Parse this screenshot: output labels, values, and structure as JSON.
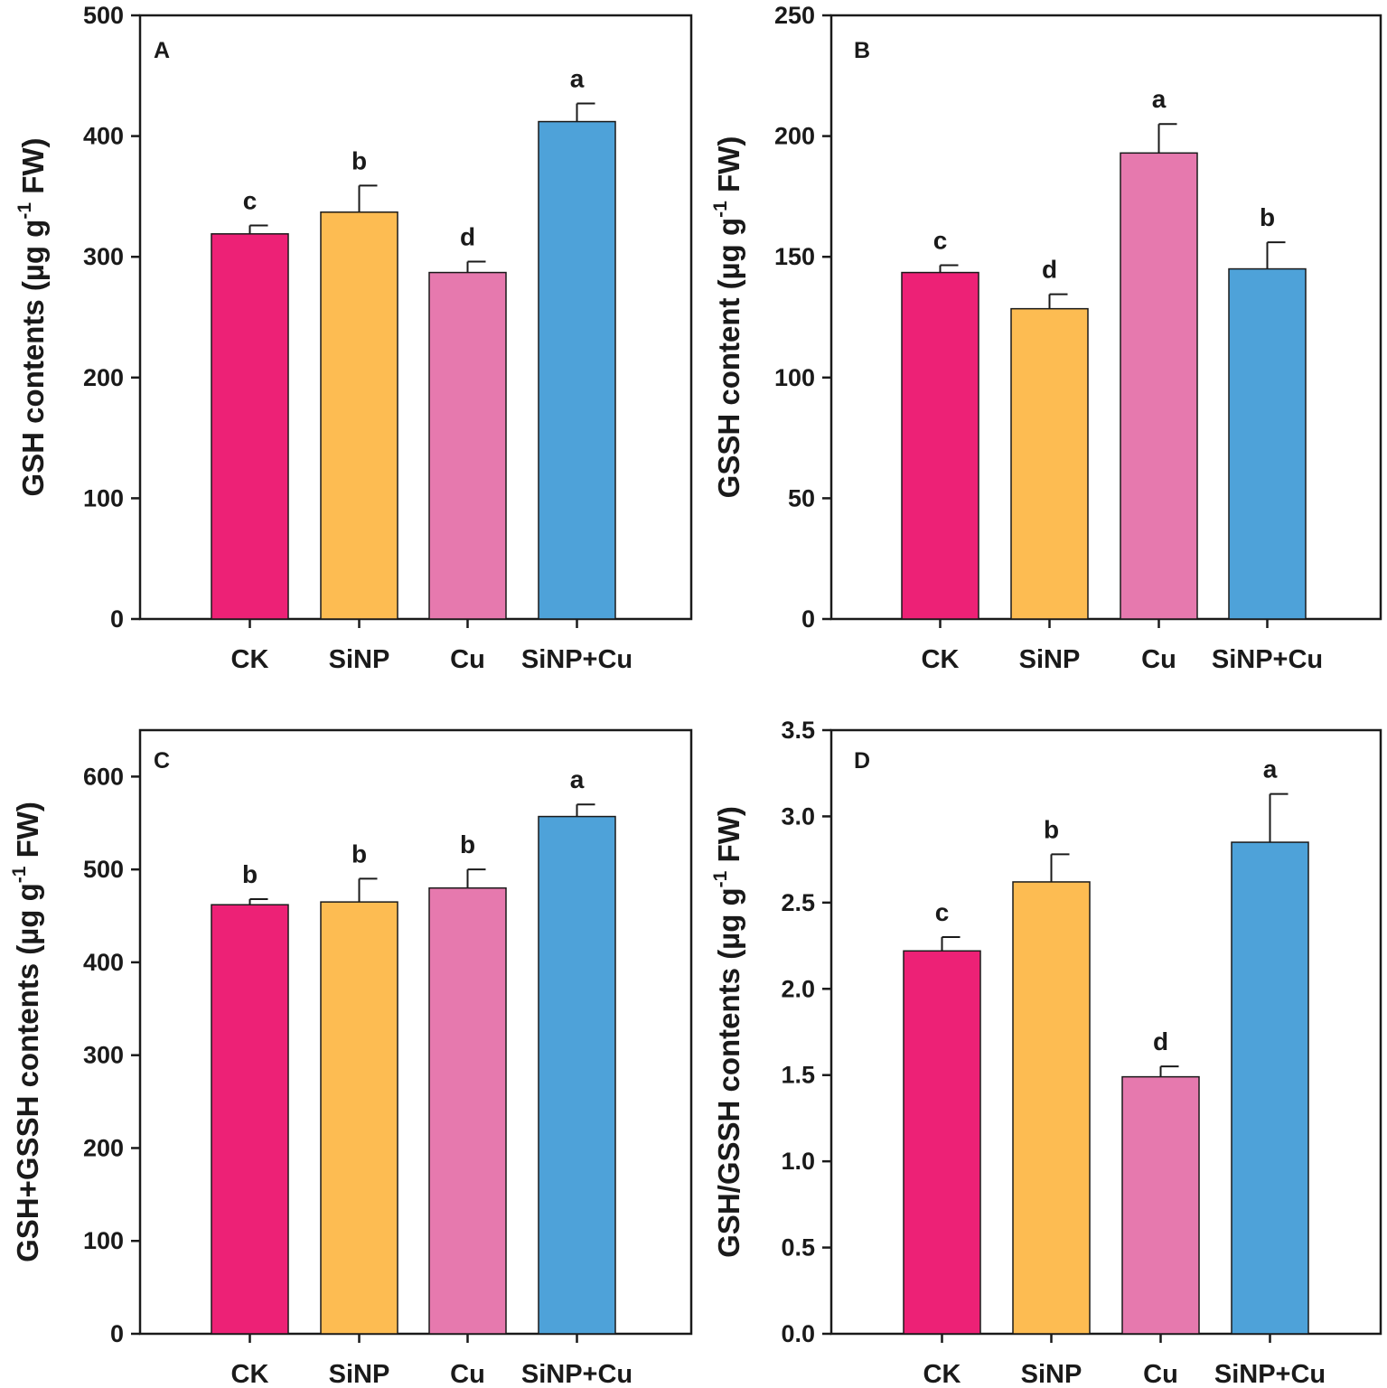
{
  "figure": {
    "categories": [
      "CK",
      "SiNP",
      "Cu",
      "SiNP+Cu"
    ],
    "colors": {
      "CK": "#ED2176",
      "SiNP": "#FDBC52",
      "Cu": "#E679AE",
      "SiNP+Cu": "#4EA2D9",
      "axis": "#1a1a1a"
    }
  },
  "chart_data": [
    {
      "panel": "A",
      "type": "bar",
      "categories": [
        "CK",
        "SiNP",
        "Cu",
        "SiNP+Cu"
      ],
      "values": [
        319,
        337,
        287,
        412
      ],
      "errors": [
        7,
        22,
        9,
        15
      ],
      "significance": [
        "c",
        "b",
        "d",
        "a"
      ],
      "ylabel": {
        "main": "GSH contents (µg g",
        "sup": "-1",
        "tail": " FW)"
      },
      "ylim": [
        0,
        500
      ],
      "yticks": [
        0,
        100,
        200,
        300,
        400,
        500
      ]
    },
    {
      "panel": "B",
      "type": "bar",
      "categories": [
        "CK",
        "SiNP",
        "Cu",
        "SiNP+Cu"
      ],
      "values": [
        143.5,
        128.5,
        193,
        145
      ],
      "errors": [
        3,
        6,
        12,
        11
      ],
      "significance": [
        "c",
        "d",
        "a",
        "b"
      ],
      "ylabel": {
        "main": "GSSH content (µg g",
        "sup": "-1",
        "tail": " FW)"
      },
      "ylim": [
        0,
        250
      ],
      "yticks": [
        0,
        50,
        100,
        150,
        200,
        250
      ]
    },
    {
      "panel": "C",
      "type": "bar",
      "categories": [
        "CK",
        "SiNP",
        "Cu",
        "SiNP+Cu"
      ],
      "values": [
        462,
        465,
        480,
        557
      ],
      "errors": [
        6,
        25,
        20,
        13
      ],
      "significance": [
        "b",
        "b",
        "b",
        "a"
      ],
      "ylabel": {
        "main": "GSH+GSSH contents (µg g",
        "sup": "-1",
        "tail": " FW)"
      },
      "ylim": [
        0,
        650
      ],
      "yticks": [
        0,
        100,
        200,
        300,
        400,
        500,
        600
      ]
    },
    {
      "panel": "D",
      "type": "bar",
      "categories": [
        "CK",
        "SiNP",
        "Cu",
        "SiNP+Cu"
      ],
      "values": [
        2.22,
        2.62,
        1.49,
        2.85
      ],
      "errors": [
        0.08,
        0.16,
        0.06,
        0.28
      ],
      "significance": [
        "c",
        "b",
        "d",
        "a"
      ],
      "ylabel": {
        "main": "GSH/GSSH contents (µg g",
        "sup": "-1",
        "tail": " FW)"
      },
      "ylim": [
        0,
        3.5
      ],
      "yticks": [
        "0.0",
        "0.5",
        "1.0",
        "1.5",
        "2.0",
        "2.5",
        "3.0",
        "3.5"
      ]
    }
  ]
}
